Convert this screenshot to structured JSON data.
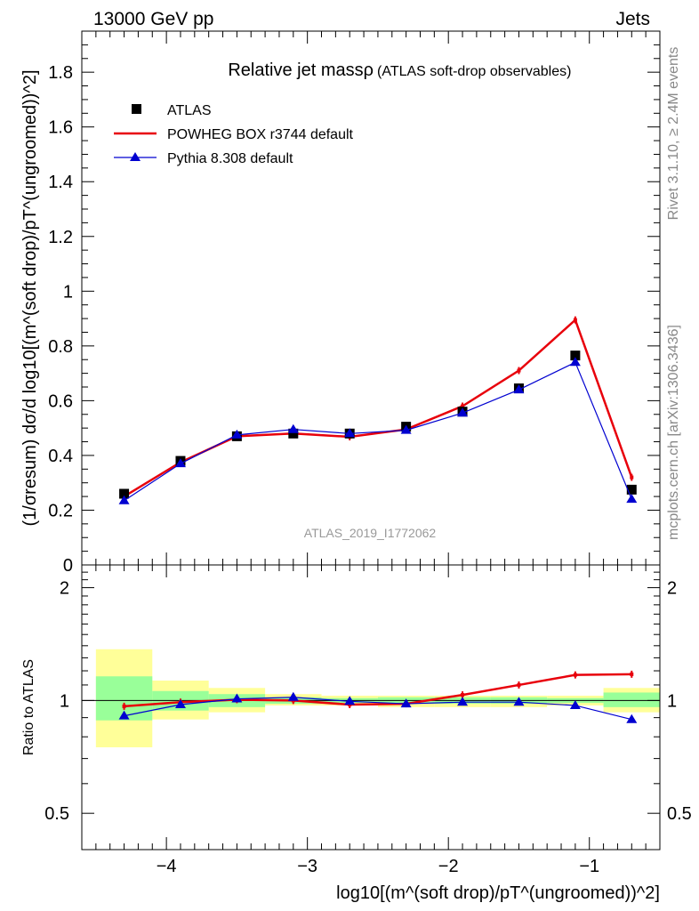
{
  "header": {
    "energy_label": "13000 GeV pp",
    "process_label": "Jets"
  },
  "side": {
    "rivet_label": "Rivet 3.1.10, ≥ 2.4M events",
    "mcplots_label": "mcplots.cern.ch [arXiv:1306.3436]"
  },
  "colors": {
    "data": "#000000",
    "powheg": "#e8000b",
    "pythia": "#0000d0",
    "band_yellow": "#ffff99",
    "band_green": "#99ff99"
  },
  "chart_data": [
    {
      "type": "scatter",
      "title": "Relative jet massρ",
      "subtitle": "(ATLAS soft-drop observables)",
      "analysis_label": "ATLAS_2019_I1772062",
      "ylabel": "(1/σresum) dσ/d log10[(m^(soft drop)/pT^(ungroomed))^2]",
      "xlim": [
        -4.6,
        -0.5
      ],
      "ylim": [
        0,
        1.95
      ],
      "yticks": [
        "0",
        "0.2",
        "0.4",
        "0.6",
        "0.8",
        "1",
        "1.2",
        "1.4",
        "1.6",
        "1.8"
      ],
      "legend_position": "top-left",
      "bin_edges": [
        -4.5,
        -4.1,
        -3.7,
        -3.3,
        -2.9,
        -2.5,
        -2.1,
        -1.7,
        -1.3,
        -0.9,
        -0.5
      ],
      "x": [
        -4.3,
        -3.9,
        -3.5,
        -3.1,
        -2.7,
        -2.3,
        -1.9,
        -1.5,
        -1.1,
        -0.7
      ],
      "series": [
        {
          "name": "ATLAS",
          "values": [
            0.26,
            0.38,
            0.47,
            0.48,
            0.48,
            0.505,
            0.56,
            0.645,
            0.765,
            0.275
          ]
        },
        {
          "name": "POWHEG BOX r3744 default",
          "values": [
            0.25,
            0.375,
            0.47,
            0.48,
            0.468,
            0.495,
            0.58,
            0.71,
            0.895,
            0.32
          ]
        },
        {
          "name": "Pythia 8.308 default",
          "values": [
            0.235,
            0.37,
            0.475,
            0.495,
            0.48,
            0.492,
            0.555,
            0.64,
            0.74,
            0.24
          ]
        }
      ]
    },
    {
      "type": "scatter",
      "ylabel": "Ratio to ATLAS",
      "xlabel": "log10[(m^(soft drop)/pT^(ungroomed))^2]",
      "xlim": [
        -4.6,
        -0.5
      ],
      "ylim": [
        0.4,
        2.3
      ],
      "y_scale": "log",
      "xticks": [
        "−4",
        "−3",
        "−2",
        "−1"
      ],
      "yticks": [
        "0.5",
        "1",
        "2"
      ],
      "bin_edges": [
        -4.5,
        -4.1,
        -3.7,
        -3.3,
        -2.9,
        -2.5,
        -2.1,
        -1.7,
        -1.3,
        -0.9,
        -0.5
      ],
      "x": [
        -4.3,
        -3.9,
        -3.5,
        -3.1,
        -2.7,
        -2.3,
        -1.9,
        -1.5,
        -1.1,
        -0.7
      ],
      "band_yellow": [
        [
          0.75,
          1.37
        ],
        [
          0.89,
          1.13
        ],
        [
          0.93,
          1.08
        ],
        [
          0.97,
          1.04
        ],
        [
          0.97,
          1.03
        ],
        [
          0.96,
          1.03
        ],
        [
          0.96,
          1.03
        ],
        [
          0.96,
          1.03
        ],
        [
          0.97,
          1.03
        ],
        [
          0.93,
          1.08
        ]
      ],
      "band_green": [
        [
          0.885,
          1.16
        ],
        [
          0.94,
          1.06
        ],
        [
          0.96,
          1.04
        ],
        [
          0.98,
          1.02
        ],
        [
          0.985,
          1.015
        ],
        [
          0.98,
          1.02
        ],
        [
          0.98,
          1.02
        ],
        [
          0.98,
          1.02
        ],
        [
          0.985,
          1.015
        ],
        [
          0.96,
          1.05
        ]
      ],
      "series": [
        {
          "name": "POWHEG BOX r3744 default",
          "values": [
            0.965,
            0.99,
            1.005,
            1.0,
            0.975,
            0.98,
            1.035,
            1.1,
            1.17,
            1.175
          ]
        },
        {
          "name": "Pythia 8.308 default",
          "values": [
            0.91,
            0.975,
            1.01,
            1.02,
            0.995,
            0.98,
            0.99,
            0.99,
            0.97,
            0.89
          ]
        }
      ]
    }
  ]
}
